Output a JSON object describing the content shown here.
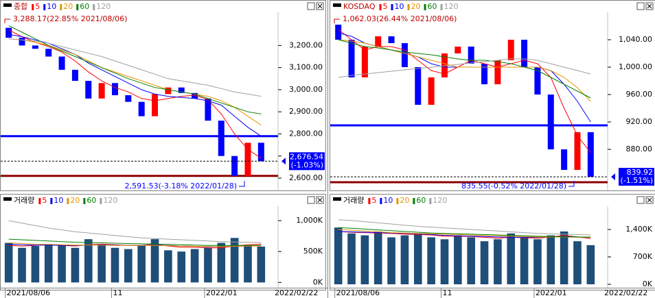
{
  "chart_data": [
    {
      "type": "candlestick",
      "title": "종합",
      "open": [
        3280,
        3235,
        3200,
        3185,
        3150,
        3090,
        3040,
        2960,
        3030,
        2975,
        2945,
        2880,
        2980,
        3010,
        2985,
        2960,
        2860,
        2700,
        2610,
        2760
      ],
      "close": [
        3235,
        3200,
        3185,
        3150,
        3090,
        3040,
        2960,
        3030,
        2975,
        2945,
        2880,
        2980,
        3010,
        2985,
        2960,
        2860,
        2700,
        2610,
        2760,
        2676.54
      ],
      "up_color": "#ff0000",
      "down_color": "#0000ff",
      "series": [
        {
          "name": "5",
          "color": "#ff0000",
          "values": [
            3270,
            3240,
            3215,
            3195,
            3170,
            3130,
            3080,
            3040,
            3010,
            2990,
            2960,
            2950,
            2960,
            2970,
            2975,
            2955,
            2890,
            2800,
            2730,
            2690
          ]
        },
        {
          "name": "10",
          "color": "#0000ff",
          "values": [
            3250,
            3240,
            3225,
            3210,
            3185,
            3160,
            3120,
            3090,
            3060,
            3030,
            3000,
            2980,
            2970,
            2965,
            2960,
            2950,
            2930,
            2880,
            2830,
            2790
          ]
        },
        {
          "name": "20",
          "color": "#e69500",
          "values": [
            3230,
            3225,
            3215,
            3200,
            3180,
            3160,
            3130,
            3100,
            3080,
            3060,
            3040,
            3020,
            3000,
            2990,
            2980,
            2970,
            2950,
            2920,
            2880,
            2840
          ]
        },
        {
          "name": "60",
          "color": "#008000",
          "values": [
            3290,
            3260,
            3230,
            3200,
            3175,
            3150,
            3125,
            3100,
            3075,
            3050,
            3030,
            3010,
            3000,
            2990,
            2980,
            2960,
            2940,
            2920,
            2900,
            2890
          ]
        },
        {
          "name": "120",
          "color": "#a0a0a0",
          "values": [
            3230,
            3225,
            3220,
            3210,
            3195,
            3180,
            3165,
            3150,
            3130,
            3110,
            3090,
            3070,
            3050,
            3040,
            3030,
            3020,
            3005,
            2990,
            2980,
            2970
          ]
        }
      ],
      "ylim": [
        2569,
        3350
      ],
      "yticks": [
        {
          "value": 3200,
          "label": "3,200.00"
        },
        {
          "value": 3100,
          "label": "3,100.00"
        },
        {
          "value": 3000,
          "label": "3,000.00"
        },
        {
          "value": 2900,
          "label": "2,900.00"
        },
        {
          "value": 2800,
          "label": "2,800.00"
        },
        {
          "value": 2700,
          "label": "2,700.00"
        },
        {
          "value": 2600,
          "label": "2,600.00"
        }
      ],
      "reference_lines": [
        {
          "value": 2790,
          "color": "#0000ff"
        },
        {
          "value": 2610,
          "color": "#8b0000"
        }
      ],
      "current": {
        "value": 2676.54,
        "label": "2,676.54",
        "change": "(-1.03%)"
      },
      "high_note": "3,288.17(22.85% 2021/08/06)",
      "low_note": "2,591.53(-3.18% 2022/01/28)"
    },
    {
      "type": "bar",
      "title": "거래량",
      "color": "#1f4e79",
      "categories": [
        "2021/08/06",
        null,
        null,
        null,
        null,
        null,
        null,
        null,
        "11",
        null,
        null,
        null,
        null,
        null,
        null,
        "2022/01",
        null,
        null,
        null,
        null
      ],
      "values": [
        640000,
        560000,
        590000,
        620000,
        600000,
        560000,
        700000,
        620000,
        560000,
        540000,
        600000,
        700000,
        520000,
        500000,
        540000,
        560000,
        640000,
        720000,
        600000,
        580000
      ],
      "series": [
        {
          "name": "5",
          "color": "#ff0000",
          "values": [
            600000,
            590000,
            600000,
            610000,
            600000,
            590000,
            610000,
            620000,
            610000,
            600000,
            600000,
            620000,
            590000,
            570000,
            570000,
            560000,
            560000,
            590000,
            610000,
            620000
          ]
        },
        {
          "name": "10",
          "color": "#0000ff",
          "values": [
            620000,
            610000,
            605000,
            605000,
            600000,
            600000,
            605000,
            610000,
            605000,
            600000,
            600000,
            605000,
            600000,
            590000,
            585000,
            580000,
            580000,
            585000,
            590000,
            600000
          ]
        },
        {
          "name": "20",
          "color": "#e69500",
          "values": [
            640000,
            630000,
            620000,
            615000,
            610000,
            605000,
            605000,
            605000,
            600000,
            600000,
            600000,
            600000,
            595000,
            590000,
            585000,
            585000,
            580000,
            585000,
            590000,
            590000
          ]
        },
        {
          "name": "60",
          "color": "#008000",
          "values": [
            700000,
            690000,
            680000,
            670000,
            660000,
            650000,
            645000,
            640000,
            635000,
            630000,
            625000,
            620000,
            615000,
            610000,
            605000,
            600000,
            598000,
            598000,
            598000,
            598000
          ]
        },
        {
          "name": "120",
          "color": "#a0a0a0",
          "values": [
            1000000,
            960000,
            920000,
            880000,
            850000,
            820000,
            800000,
            780000,
            760000,
            740000,
            720000,
            710000,
            700000,
            690000,
            680000,
            670000,
            660000,
            655000,
            650000,
            645000
          ]
        }
      ],
      "ylim": [
        -30000,
        1300000
      ],
      "yticks": [
        {
          "value": 1000000,
          "label": "1,000K"
        },
        {
          "value": 500000,
          "label": "500K"
        },
        {
          "value": 0,
          "label": "0K"
        }
      ],
      "end_label": "2022/02/22"
    },
    {
      "type": "candlestick",
      "title": "KOSDAQ",
      "open": [
        1062,
        1040,
        985,
        1030,
        1045,
        1035,
        1000,
        945,
        985,
        1020,
        1030,
        1005,
        975,
        1010,
        1040,
        1000,
        960,
        880,
        850,
        905
      ],
      "close": [
        1040,
        985,
        1030,
        1045,
        1035,
        1000,
        945,
        985,
        1020,
        1030,
        1005,
        975,
        1010,
        1040,
        1000,
        960,
        880,
        850,
        905,
        839.92
      ],
      "up_color": "#ff0000",
      "down_color": "#0000ff",
      "series": [
        {
          "name": "5",
          "color": "#ff0000",
          "values": [
            1055,
            1040,
            1025,
            1030,
            1030,
            1025,
            1010,
            995,
            990,
            1000,
            1010,
            1005,
            1000,
            1005,
            1010,
            1005,
            985,
            940,
            900,
            875
          ]
        },
        {
          "name": "10",
          "color": "#0000ff",
          "values": [
            1050,
            1045,
            1035,
            1030,
            1025,
            1020,
            1015,
            1005,
            1000,
            1000,
            1000,
            1000,
            1000,
            1000,
            1000,
            1000,
            995,
            975,
            950,
            920
          ]
        },
        {
          "name": "20",
          "color": "#e69500",
          "values": [
            1040,
            1038,
            1035,
            1030,
            1025,
            1020,
            1015,
            1010,
            1005,
            1000,
            1000,
            1000,
            1000,
            1000,
            1000,
            1000,
            995,
            985,
            970,
            950
          ]
        },
        {
          "name": "60",
          "color": "#008000",
          "values": [
            1040,
            1035,
            1030,
            1028,
            1025,
            1022,
            1020,
            1018,
            1015,
            1012,
            1010,
            1010,
            1008,
            1005,
            1000,
            995,
            985,
            975,
            965,
            955
          ]
        },
        {
          "name": "120",
          "color": "#a0a0a0",
          "values": [
            985,
            988,
            990,
            992,
            994,
            996,
            998,
            1000,
            1002,
            1004,
            1006,
            1008,
            1010,
            1012,
            1012,
            1010,
            1005,
            1000,
            995,
            990
          ]
        }
      ],
      "ylim": [
        828,
        1080
      ],
      "yticks": [
        {
          "value": 1040,
          "label": "1,040.00"
        },
        {
          "value": 1000,
          "label": "1,000.00"
        },
        {
          "value": 960,
          "label": "960.00"
        },
        {
          "value": 920,
          "label": "920.00"
        },
        {
          "value": 880,
          "label": "880.00"
        }
      ],
      "reference_lines": [
        {
          "value": 915,
          "color": "#0000ff"
        },
        {
          "value": 832,
          "color": "#8b0000"
        }
      ],
      "current": {
        "value": 839.92,
        "label": "839.92",
        "change": "(-1.51%)"
      },
      "high_note": "1,062.03(26.44% 2021/08/06)",
      "low_note": "835.55(-0.52% 2022/01/28)"
    },
    {
      "type": "bar",
      "title": "거래량",
      "color": "#1f4e79",
      "categories": [
        "2021/08/06",
        null,
        null,
        null,
        null,
        null,
        null,
        null,
        "11",
        null,
        null,
        null,
        null,
        null,
        null,
        "2022/01",
        null,
        null,
        null,
        null
      ],
      "values": [
        1450000,
        1300000,
        1250000,
        1350000,
        1200000,
        1250000,
        1300000,
        1200000,
        1150000,
        1250000,
        1200000,
        1100000,
        1150000,
        1300000,
        1200000,
        1150000,
        1250000,
        1350000,
        1100000,
        1000000
      ],
      "series": [
        {
          "name": "5",
          "color": "#ff0000",
          "values": [
            1350000,
            1330000,
            1320000,
            1310000,
            1300000,
            1280000,
            1270000,
            1260000,
            1230000,
            1230000,
            1220000,
            1200000,
            1180000,
            1200000,
            1190000,
            1180000,
            1210000,
            1250000,
            1210000,
            1170000
          ]
        },
        {
          "name": "10",
          "color": "#0000ff",
          "values": [
            1350000,
            1340000,
            1330000,
            1320000,
            1310000,
            1300000,
            1290000,
            1270000,
            1250000,
            1240000,
            1230000,
            1220000,
            1210000,
            1200000,
            1200000,
            1200000,
            1210000,
            1220000,
            1210000,
            1200000
          ]
        },
        {
          "name": "20",
          "color": "#e69500",
          "values": [
            1400000,
            1380000,
            1360000,
            1340000,
            1320000,
            1310000,
            1300000,
            1290000,
            1280000,
            1270000,
            1260000,
            1250000,
            1240000,
            1230000,
            1220000,
            1210000,
            1210000,
            1210000,
            1200000,
            1200000
          ]
        },
        {
          "name": "60",
          "color": "#008000",
          "values": [
            1450000,
            1430000,
            1410000,
            1390000,
            1370000,
            1350000,
            1330000,
            1310000,
            1300000,
            1290000,
            1280000,
            1270000,
            1260000,
            1250000,
            1240000,
            1230000,
            1220000,
            1215000,
            1210000,
            1205000
          ]
        },
        {
          "name": "120",
          "color": "#a0a0a0",
          "values": [
            1650000,
            1630000,
            1600000,
            1570000,
            1540000,
            1510000,
            1480000,
            1460000,
            1440000,
            1420000,
            1400000,
            1380000,
            1360000,
            1340000,
            1320000,
            1300000,
            1290000,
            1280000,
            1270000,
            1260000
          ]
        }
      ],
      "ylim": [
        0,
        2100000
      ],
      "yticks": [
        {
          "value": 1400000,
          "label": "1,400K"
        },
        {
          "value": 700000,
          "label": "700K"
        },
        {
          "value": 0,
          "label": "0K"
        }
      ],
      "end_label": "2022/02/22"
    }
  ]
}
